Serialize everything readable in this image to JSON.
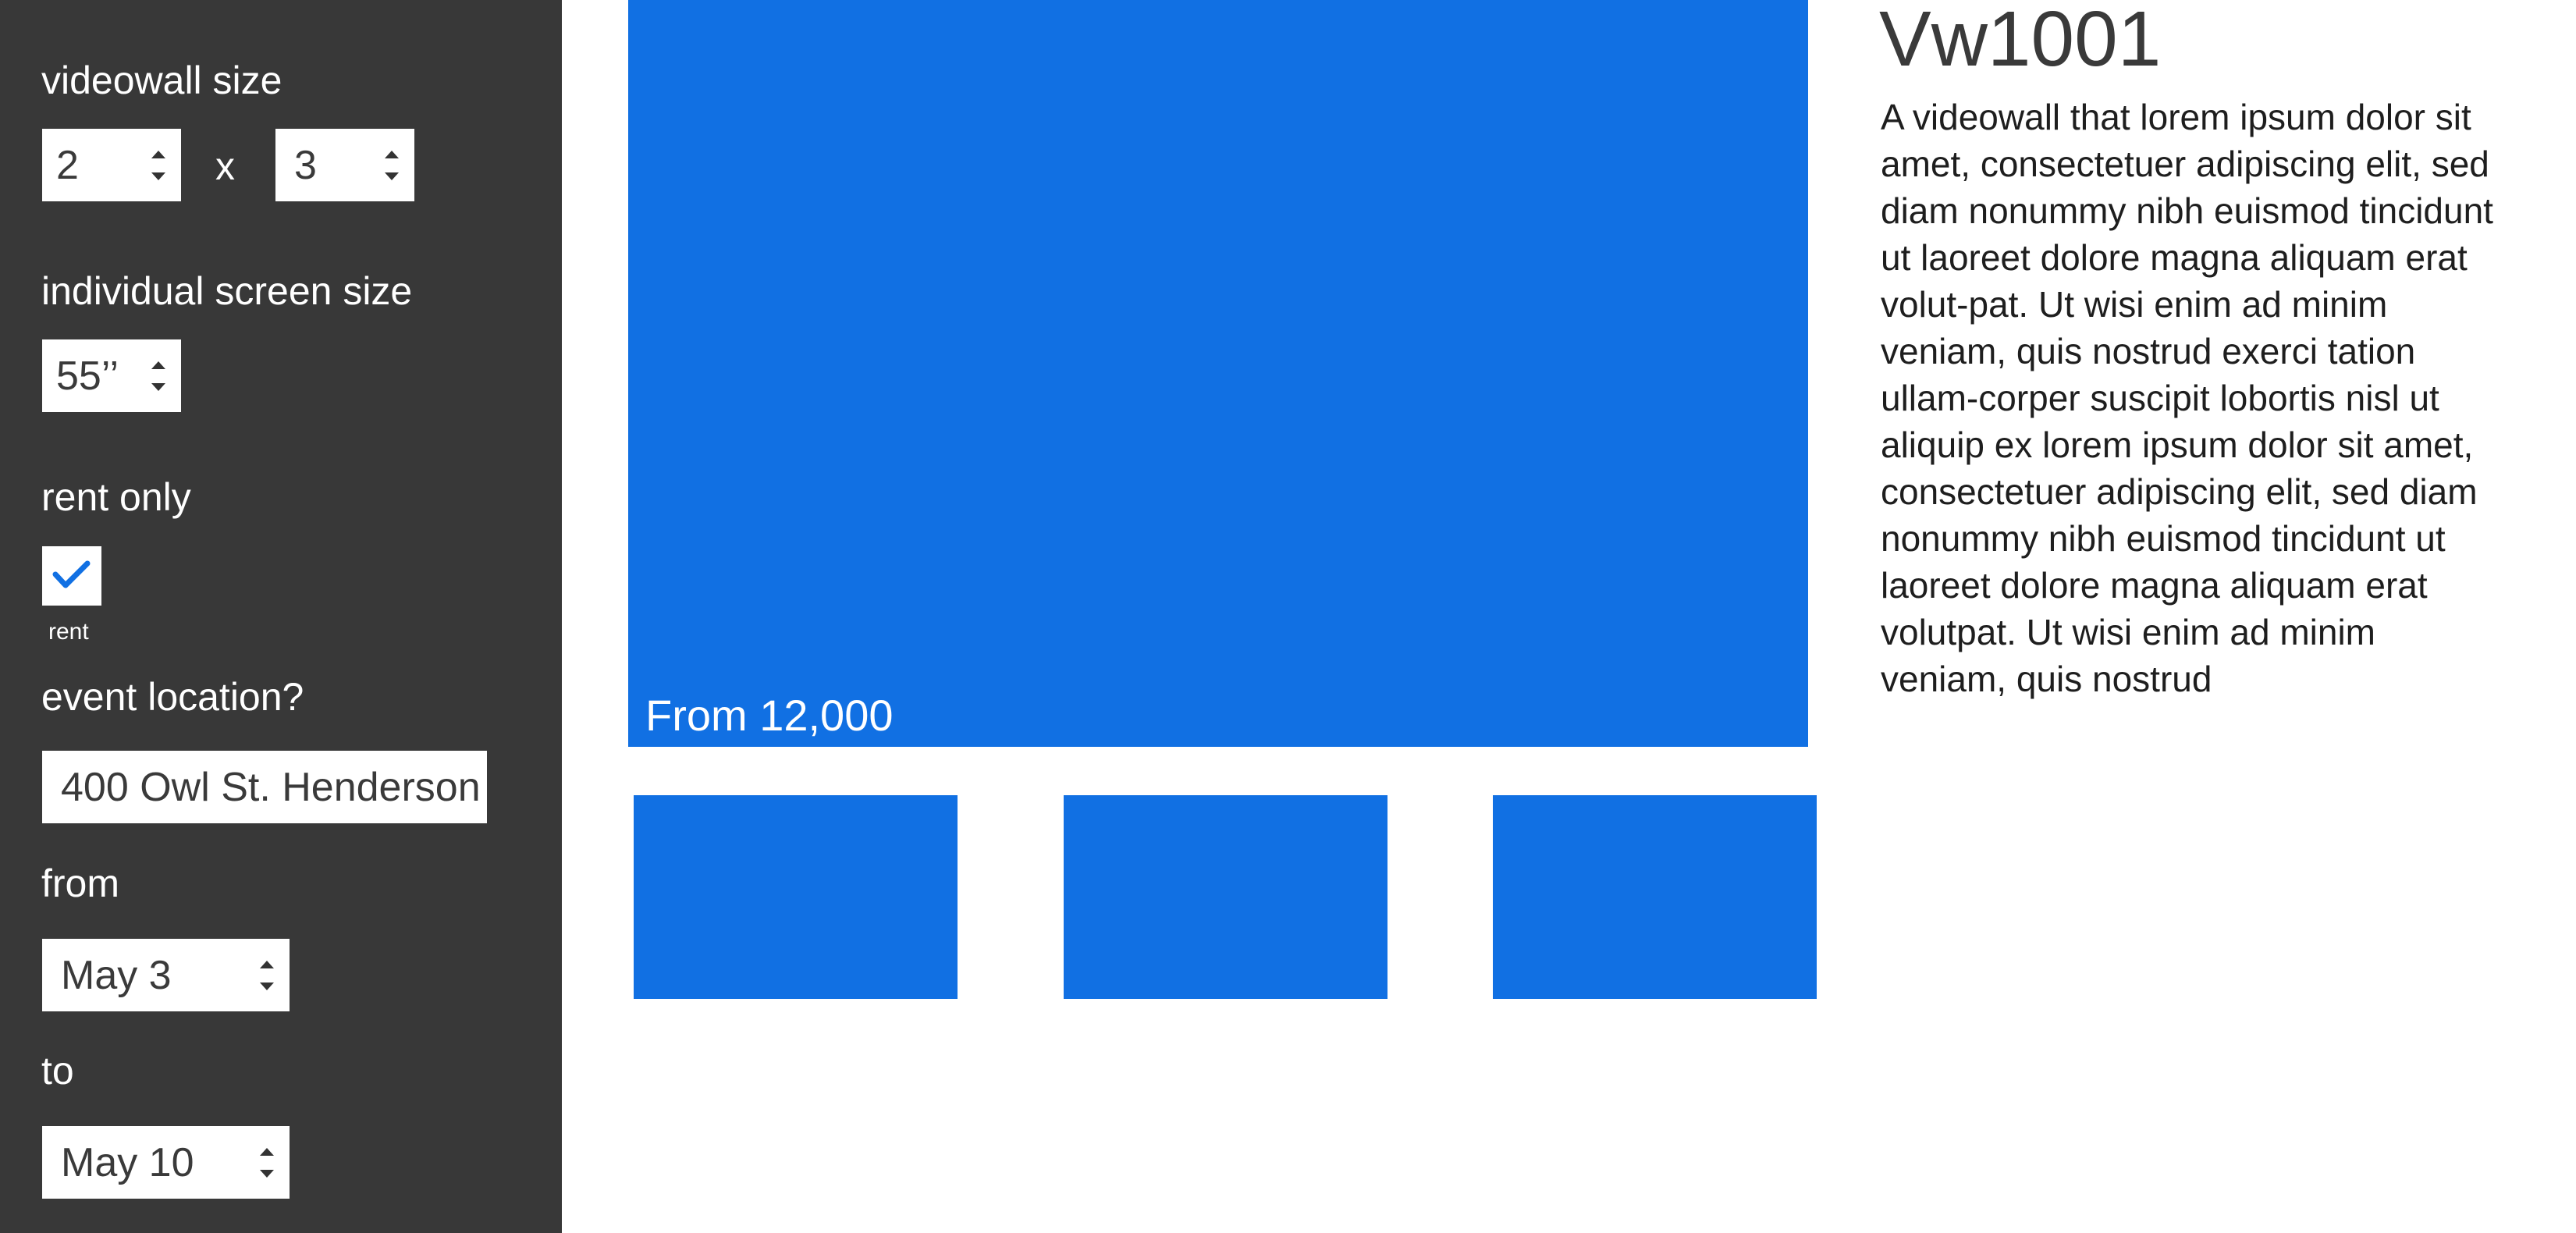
{
  "sidebar": {
    "videowall_size_label": "videowall size",
    "rows_value": "2",
    "separator": "x",
    "cols_value": "3",
    "screen_size_label": "individual screen size",
    "screen_size_value": "55’’",
    "rent_only_label": "rent only",
    "rent_checked": true,
    "rent_checkbox_label": "rent",
    "event_location_label": "event location?",
    "event_location_value": "400 Owl St. Henderson",
    "from_label": "from",
    "from_value": "May 3",
    "to_label": "to",
    "to_value": "May 10"
  },
  "hero": {
    "price_text": "From 12,000"
  },
  "product": {
    "title": "Vw1001",
    "description": "A videowall that lorem ipsum dolor sit amet, consectetuer adipiscing elit, sed diam nonummy nibh euismod tincidunt ut laoreet dolore magna aliquam erat volut-pat. Ut wisi enim ad minim veniam, quis nostrud exerci tation ullam-corper suscipit lobortis nisl ut aliquip ex  lorem ipsum dolor sit amet, consectetuer adipiscing elit, sed diam nonummy nibh euismod tincidunt ut laoreet dolore magna aliquam erat volutpat. Ut wisi enim ad minim veniam, quis nostrud"
  },
  "colors": {
    "sidebar_bg": "#383838",
    "accent_blue": "#1170e3",
    "title_text": "#3a3a3a"
  }
}
